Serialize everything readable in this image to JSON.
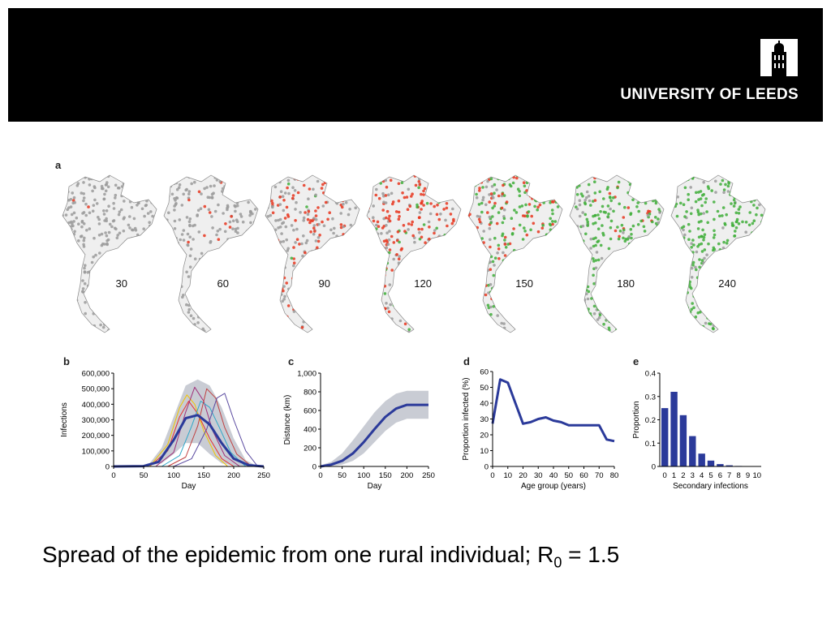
{
  "header": {
    "logo_text": "UNIVERSITY OF LEEDS",
    "logo_icon": "leeds-tower-icon",
    "background": "#000000"
  },
  "figure": {
    "panel_a": {
      "letter": "a",
      "maps": [
        {
          "day": "30",
          "red": 0.02,
          "green": 0.0
        },
        {
          "day": "60",
          "red": 0.08,
          "green": 0.0
        },
        {
          "day": "90",
          "red": 0.45,
          "green": 0.02
        },
        {
          "day": "120",
          "red": 0.7,
          "green": 0.12
        },
        {
          "day": "150",
          "red": 0.4,
          "green": 0.5
        },
        {
          "day": "180",
          "red": 0.15,
          "green": 0.8
        },
        {
          "day": "240",
          "red": 0.0,
          "green": 0.9
        }
      ],
      "colors": {
        "susceptible": "#9a9a9a",
        "infected": "#e8361e",
        "recovered": "#3fae3a"
      }
    }
  },
  "chart_data": [
    {
      "panel": "b",
      "type": "line",
      "xlabel": "Day",
      "ylabel": "Infections",
      "xlim": [
        0,
        250
      ],
      "ylim": [
        0,
        600000
      ],
      "xticks": [
        "0",
        "50",
        "100",
        "150",
        "200",
        "250"
      ],
      "yticks": [
        "0",
        "100,000",
        "200,000",
        "300,000",
        "400,000",
        "500,000",
        "600,000"
      ],
      "band": {
        "x": [
          40,
          60,
          80,
          100,
          120,
          140,
          160,
          180,
          200,
          220,
          240
        ],
        "lower": [
          0,
          5000,
          20000,
          80000,
          150000,
          150000,
          80000,
          20000,
          5000,
          0,
          0
        ],
        "upper": [
          0,
          20000,
          120000,
          320000,
          520000,
          560000,
          520000,
          380000,
          180000,
          40000,
          0
        ]
      },
      "series": [
        {
          "color": "#2b3a9a",
          "x": [
            0,
            50,
            75,
            100,
            120,
            140,
            160,
            180,
            200,
            225,
            250
          ],
          "y": [
            0,
            2000,
            30000,
            170000,
            310000,
            330000,
            270000,
            150000,
            50000,
            8000,
            0
          ]
        },
        {
          "color": "#e53030",
          "x": [
            60,
            90,
            110,
            125,
            140,
            160,
            180,
            200
          ],
          "y": [
            0,
            100000,
            320000,
            420000,
            340000,
            180000,
            50000,
            0
          ]
        },
        {
          "color": "#f2c400",
          "x": [
            60,
            90,
            110,
            122,
            135,
            150,
            170,
            190
          ],
          "y": [
            0,
            140000,
            380000,
            460000,
            400000,
            230000,
            70000,
            0
          ]
        },
        {
          "color": "#a0307a",
          "x": [
            70,
            100,
            120,
            135,
            150,
            165,
            185,
            210
          ],
          "y": [
            0,
            90000,
            350000,
            510000,
            420000,
            230000,
            70000,
            0
          ]
        },
        {
          "color": "#2fa7c8",
          "x": [
            80,
            110,
            130,
            145,
            160,
            175,
            195,
            220
          ],
          "y": [
            0,
            70000,
            260000,
            420000,
            380000,
            260000,
            90000,
            0
          ]
        },
        {
          "color": "#c04040",
          "x": [
            90,
            120,
            140,
            155,
            170,
            185,
            205,
            230
          ],
          "y": [
            0,
            60000,
            260000,
            500000,
            440000,
            250000,
            80000,
            0
          ]
        },
        {
          "color": "#5a4aa0",
          "x": [
            100,
            130,
            155,
            172,
            185,
            200,
            220,
            240
          ],
          "y": [
            0,
            50000,
            240000,
            440000,
            470000,
            300000,
            100000,
            0
          ]
        }
      ]
    },
    {
      "panel": "c",
      "type": "line",
      "xlabel": "Day",
      "ylabel": "Distance (km)",
      "xlim": [
        0,
        250
      ],
      "ylim": [
        0,
        1000
      ],
      "xticks": [
        "0",
        "50",
        "100",
        "150",
        "200",
        "250"
      ],
      "yticks": [
        "0",
        "200",
        "400",
        "600",
        "800",
        "1,000"
      ],
      "series": [
        {
          "color": "#2b3a9a",
          "x": [
            0,
            25,
            50,
            75,
            100,
            125,
            150,
            175,
            200,
            225,
            250
          ],
          "y": [
            0,
            20,
            60,
            140,
            260,
            400,
            530,
            620,
            660,
            660,
            660
          ]
        }
      ],
      "band": {
        "x": [
          0,
          25,
          50,
          75,
          100,
          125,
          150,
          175,
          200,
          225,
          250
        ],
        "lower": [
          0,
          5,
          20,
          60,
          140,
          260,
          380,
          470,
          510,
          510,
          510
        ],
        "upper": [
          10,
          50,
          140,
          280,
          430,
          580,
          700,
          780,
          810,
          810,
          810
        ]
      }
    },
    {
      "panel": "d",
      "type": "line",
      "xlabel": "Age group (years)",
      "ylabel": "Proportion infected (%)",
      "xlim": [
        0,
        80
      ],
      "ylim": [
        0,
        60
      ],
      "xticks": [
        "0",
        "10",
        "20",
        "30",
        "40",
        "50",
        "60",
        "70",
        "80"
      ],
      "yticks": [
        "0",
        "10",
        "20",
        "30",
        "40",
        "50",
        "60"
      ],
      "series": [
        {
          "color": "#2b3a9a",
          "x": [
            0,
            5,
            10,
            15,
            20,
            25,
            30,
            35,
            40,
            45,
            50,
            55,
            60,
            65,
            70,
            75,
            80
          ],
          "y": [
            27,
            55,
            53,
            40,
            27,
            28,
            30,
            31,
            29,
            28,
            26,
            26,
            26,
            26,
            26,
            17,
            16
          ]
        }
      ]
    },
    {
      "panel": "e",
      "type": "bar",
      "xlabel": "Secondary infections",
      "ylabel": "Proportion",
      "ylim": [
        0,
        0.4
      ],
      "yticks": [
        "0",
        "0.1",
        "0.2",
        "0.3",
        "0.4"
      ],
      "categories": [
        "0",
        "1",
        "2",
        "3",
        "4",
        "5",
        "6",
        "7",
        "8",
        "9",
        "10"
      ],
      "values": [
        0.25,
        0.32,
        0.22,
        0.13,
        0.055,
        0.025,
        0.01,
        0.005,
        0.002,
        0.001,
        0.0
      ],
      "color": "#2b3a9a"
    }
  ],
  "caption": {
    "text": "Spread of the epidemic from one rural individual; R",
    "subscript": "0",
    "suffix": " = 1.5"
  }
}
